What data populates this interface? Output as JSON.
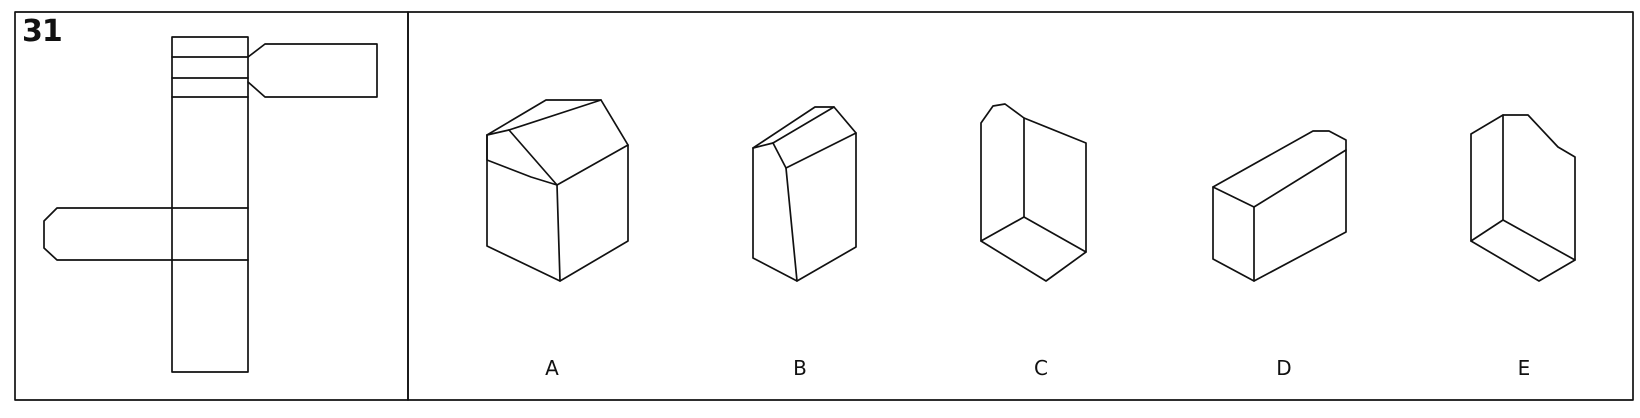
{
  "question": {
    "number": "31"
  },
  "options": [
    {
      "label": "A"
    },
    {
      "label": "B"
    },
    {
      "label": "C"
    },
    {
      "label": "D"
    },
    {
      "label": "E"
    }
  ],
  "colors": {
    "ink": "#111111",
    "paper": "#ffffff"
  }
}
